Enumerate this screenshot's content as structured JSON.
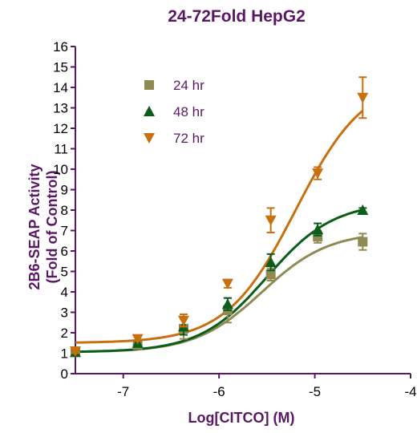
{
  "chart_data": {
    "type": "scatter",
    "title": "24-72Fold HepG2",
    "xlabel": "Log[CITCO] (M)",
    "ylabel_line1": "2B6-SEAP Activity",
    "ylabel_line2": "(Fold of Control)",
    "xlim": [
      -7.5,
      -4
    ],
    "ylim": [
      0,
      16
    ],
    "xticks": [
      -7,
      -6,
      -5,
      -4
    ],
    "xtick_labels": [
      "-7",
      "-6",
      "-5",
      "-4"
    ],
    "yticks": [
      0,
      1,
      2,
      3,
      4,
      5,
      6,
      7,
      8,
      9,
      10,
      11,
      12,
      13,
      14,
      15,
      16
    ],
    "ytick_labels": [
      "0",
      "1",
      "2",
      "3",
      "4",
      "5",
      "6",
      "7",
      "8",
      "9",
      "10",
      "11",
      "12",
      "13",
      "14",
      "15",
      "16"
    ],
    "grid": false,
    "legend_position": "top-left",
    "fitted_curves": true,
    "series": [
      {
        "name": "24 hr",
        "marker": "square",
        "color": "#8f8a52",
        "x": [
          -7.5,
          -6.85,
          -6.37,
          -5.91,
          -5.46,
          -4.97,
          -4.5
        ],
        "y": [
          1.05,
          1.4,
          2.2,
          3.1,
          4.85,
          6.7,
          6.45
        ],
        "err": [
          0.1,
          0.1,
          0.5,
          0.6,
          0.3,
          0.3,
          0.4
        ],
        "fit": {
          "bottom": 1.05,
          "top": 6.95,
          "logEC50": -5.55,
          "hill": 1.25
        }
      },
      {
        "name": "48 hr",
        "marker": "triangle-up",
        "color": "#0b5e1a",
        "x": [
          -7.5,
          -6.85,
          -6.37,
          -5.91,
          -5.46,
          -4.97,
          -4.5
        ],
        "y": [
          1.05,
          1.5,
          2.3,
          3.4,
          5.45,
          7.05,
          8.0
        ],
        "err": [
          0.1,
          0.1,
          0.4,
          0.3,
          0.4,
          0.3,
          0.1
        ],
        "fit": {
          "bottom": 1.05,
          "top": 8.4,
          "logEC50": -5.5,
          "hill": 1.25
        }
      },
      {
        "name": "72 hr",
        "marker": "triangle-down",
        "color": "#c86f10",
        "x": [
          -7.5,
          -6.85,
          -6.37,
          -5.91,
          -5.46,
          -4.97,
          -4.5
        ],
        "y": [
          1.1,
          1.7,
          2.6,
          4.4,
          7.5,
          9.8,
          13.5
        ],
        "err": [
          0.1,
          0.1,
          0.3,
          0.2,
          0.6,
          0.3,
          1.0
        ],
        "fit": {
          "bottom": 1.5,
          "top": 14.5,
          "logEC50": -5.2,
          "hill": 1.2
        }
      }
    ]
  }
}
